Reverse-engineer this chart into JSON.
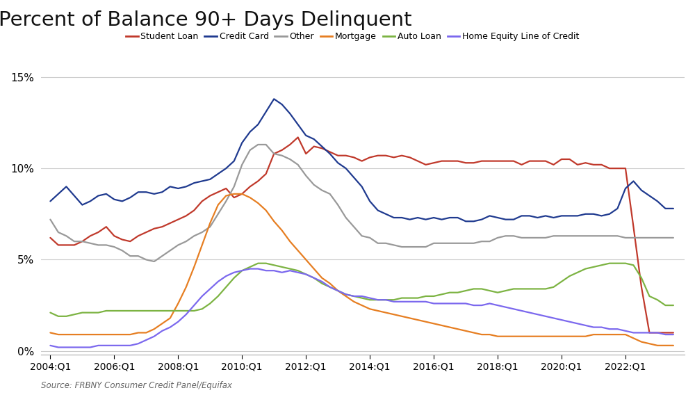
{
  "title": "Percent of Balance 90+ Days Delinquent",
  "source": "Source: FRBNY Consumer Credit Panel/Equifax",
  "background_color": "#ffffff",
  "series": {
    "Student Loan": {
      "color": "#c0392b",
      "data": [
        0.062,
        0.058,
        0.058,
        0.058,
        0.06,
        0.063,
        0.065,
        0.068,
        0.063,
        0.061,
        0.06,
        0.063,
        0.065,
        0.067,
        0.068,
        0.07,
        0.072,
        0.074,
        0.077,
        0.082,
        0.085,
        0.087,
        0.089,
        0.084,
        0.086,
        0.09,
        0.093,
        0.097,
        0.108,
        0.11,
        0.113,
        0.117,
        0.108,
        0.112,
        0.111,
        0.109,
        0.107,
        0.107,
        0.106,
        0.104,
        0.106,
        0.107,
        0.107,
        0.106,
        0.107,
        0.106,
        0.104,
        0.102,
        0.103,
        0.104,
        0.104,
        0.104,
        0.103,
        0.103,
        0.104,
        0.104,
        0.104,
        0.104,
        0.104,
        0.102,
        0.104,
        0.104,
        0.104,
        0.102,
        0.105,
        0.105,
        0.102,
        0.103,
        0.102,
        0.102,
        0.1,
        0.1,
        0.1,
        0.068,
        0.035,
        0.01,
        0.01,
        0.01,
        0.01
      ]
    },
    "Credit Card": {
      "color": "#1f3a8f",
      "data": [
        0.082,
        0.086,
        0.09,
        0.085,
        0.08,
        0.082,
        0.085,
        0.086,
        0.083,
        0.082,
        0.084,
        0.087,
        0.087,
        0.086,
        0.087,
        0.09,
        0.089,
        0.09,
        0.092,
        0.093,
        0.094,
        0.097,
        0.1,
        0.104,
        0.114,
        0.12,
        0.124,
        0.131,
        0.138,
        0.135,
        0.13,
        0.124,
        0.118,
        0.116,
        0.112,
        0.108,
        0.103,
        0.1,
        0.095,
        0.09,
        0.082,
        0.077,
        0.075,
        0.073,
        0.073,
        0.072,
        0.073,
        0.072,
        0.073,
        0.072,
        0.073,
        0.073,
        0.071,
        0.071,
        0.072,
        0.074,
        0.073,
        0.072,
        0.072,
        0.074,
        0.074,
        0.073,
        0.074,
        0.073,
        0.074,
        0.074,
        0.074,
        0.075,
        0.075,
        0.074,
        0.075,
        0.078,
        0.089,
        0.093,
        0.088,
        0.085,
        0.082,
        0.078,
        0.078
      ]
    },
    "Other": {
      "color": "#999999",
      "data": [
        0.072,
        0.065,
        0.063,
        0.06,
        0.06,
        0.059,
        0.058,
        0.058,
        0.057,
        0.055,
        0.052,
        0.052,
        0.05,
        0.049,
        0.052,
        0.055,
        0.058,
        0.06,
        0.063,
        0.065,
        0.068,
        0.075,
        0.082,
        0.09,
        0.102,
        0.11,
        0.113,
        0.113,
        0.108,
        0.107,
        0.105,
        0.102,
        0.096,
        0.091,
        0.088,
        0.086,
        0.08,
        0.073,
        0.068,
        0.063,
        0.062,
        0.059,
        0.059,
        0.058,
        0.057,
        0.057,
        0.057,
        0.057,
        0.059,
        0.059,
        0.059,
        0.059,
        0.059,
        0.059,
        0.06,
        0.06,
        0.062,
        0.063,
        0.063,
        0.062,
        0.062,
        0.062,
        0.062,
        0.063,
        0.063,
        0.063,
        0.063,
        0.063,
        0.063,
        0.063,
        0.063,
        0.063,
        0.062,
        0.062,
        0.062,
        0.062,
        0.062,
        0.062,
        0.062
      ]
    },
    "Mortgage": {
      "color": "#e67e22",
      "data": [
        0.01,
        0.009,
        0.009,
        0.009,
        0.009,
        0.009,
        0.009,
        0.009,
        0.009,
        0.009,
        0.009,
        0.01,
        0.01,
        0.012,
        0.015,
        0.018,
        0.026,
        0.035,
        0.046,
        0.058,
        0.07,
        0.08,
        0.085,
        0.086,
        0.086,
        0.084,
        0.081,
        0.077,
        0.071,
        0.066,
        0.06,
        0.055,
        0.05,
        0.045,
        0.04,
        0.037,
        0.033,
        0.03,
        0.027,
        0.025,
        0.023,
        0.022,
        0.021,
        0.02,
        0.019,
        0.018,
        0.017,
        0.016,
        0.015,
        0.014,
        0.013,
        0.012,
        0.011,
        0.01,
        0.009,
        0.009,
        0.008,
        0.008,
        0.008,
        0.008,
        0.008,
        0.008,
        0.008,
        0.008,
        0.008,
        0.008,
        0.008,
        0.008,
        0.009,
        0.009,
        0.009,
        0.009,
        0.009,
        0.007,
        0.005,
        0.004,
        0.003,
        0.003,
        0.003
      ]
    },
    "Auto Loan": {
      "color": "#7cb342",
      "data": [
        0.021,
        0.019,
        0.019,
        0.02,
        0.021,
        0.021,
        0.021,
        0.022,
        0.022,
        0.022,
        0.022,
        0.022,
        0.022,
        0.022,
        0.022,
        0.022,
        0.022,
        0.022,
        0.022,
        0.023,
        0.026,
        0.03,
        0.035,
        0.04,
        0.044,
        0.046,
        0.048,
        0.048,
        0.047,
        0.046,
        0.045,
        0.044,
        0.042,
        0.04,
        0.037,
        0.035,
        0.033,
        0.031,
        0.03,
        0.029,
        0.028,
        0.028,
        0.028,
        0.028,
        0.029,
        0.029,
        0.029,
        0.03,
        0.03,
        0.031,
        0.032,
        0.032,
        0.033,
        0.034,
        0.034,
        0.033,
        0.032,
        0.033,
        0.034,
        0.034,
        0.034,
        0.034,
        0.034,
        0.035,
        0.038,
        0.041,
        0.043,
        0.045,
        0.046,
        0.047,
        0.048,
        0.048,
        0.048,
        0.047,
        0.04,
        0.03,
        0.028,
        0.025,
        0.025
      ]
    },
    "Home Equity Line of Credit": {
      "color": "#7b68ee",
      "data": [
        0.003,
        0.002,
        0.002,
        0.002,
        0.002,
        0.002,
        0.003,
        0.003,
        0.003,
        0.003,
        0.003,
        0.004,
        0.006,
        0.008,
        0.011,
        0.013,
        0.016,
        0.02,
        0.025,
        0.03,
        0.034,
        0.038,
        0.041,
        0.043,
        0.044,
        0.045,
        0.045,
        0.044,
        0.044,
        0.043,
        0.044,
        0.043,
        0.042,
        0.04,
        0.038,
        0.035,
        0.033,
        0.031,
        0.03,
        0.03,
        0.029,
        0.028,
        0.028,
        0.027,
        0.027,
        0.027,
        0.027,
        0.027,
        0.026,
        0.026,
        0.026,
        0.026,
        0.026,
        0.025,
        0.025,
        0.026,
        0.025,
        0.024,
        0.023,
        0.022,
        0.021,
        0.02,
        0.019,
        0.018,
        0.017,
        0.016,
        0.015,
        0.014,
        0.013,
        0.013,
        0.012,
        0.012,
        0.011,
        0.01,
        0.01,
        0.01,
        0.01,
        0.009,
        0.009
      ]
    }
  },
  "n_quarters": 79,
  "start_year": 2004,
  "x_tick_years": [
    2004,
    2006,
    2008,
    2010,
    2012,
    2014,
    2016,
    2018,
    2020,
    2022
  ],
  "legend_order": [
    "Student Loan",
    "Credit Card",
    "Other",
    "Mortgage",
    "Auto Loan",
    "Home Equity Line of Credit"
  ]
}
